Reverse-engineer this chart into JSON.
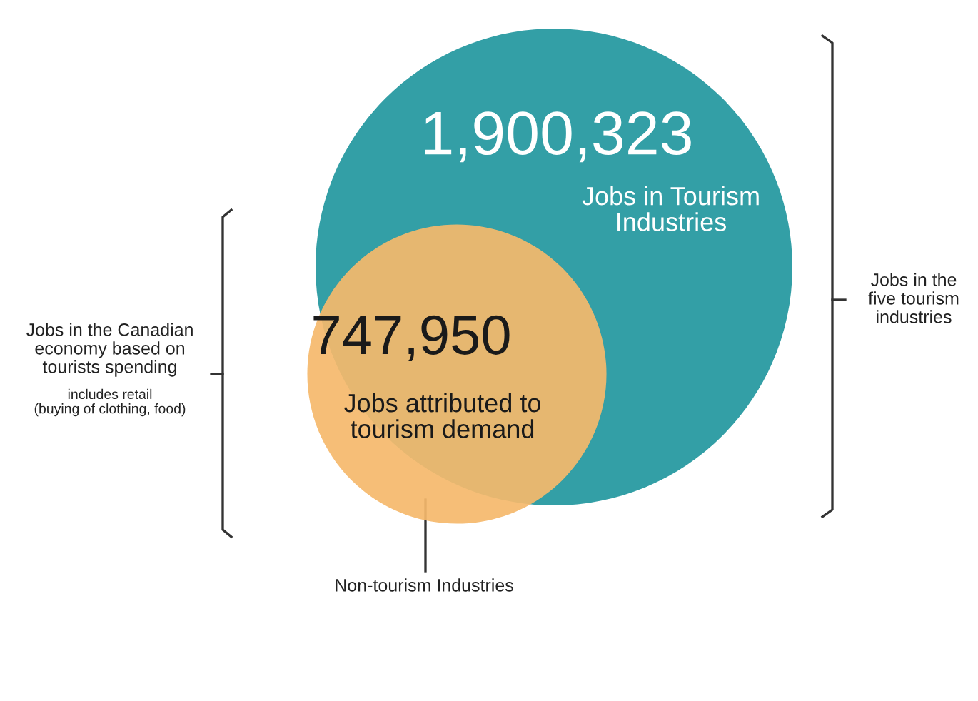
{
  "chart_data": {
    "type": "other",
    "categories": [
      "Jobs in Tourism\nIndustries",
      "Jobs attributed to\ntourism demand"
    ],
    "values": [
      1900323,
      747950
    ],
    "value_labels": [
      "1,900,323",
      "747,950"
    ],
    "colors": [
      "#339fa6",
      "#f5b96b"
    ],
    "annotations": [
      "Jobs in the\nfive tourism\nindustries",
      "Jobs in the Canadian\neconomy based on\ntourists spending",
      "includes retail\n(buying of clothing, food)",
      "Non-tourism Industries"
    ]
  }
}
